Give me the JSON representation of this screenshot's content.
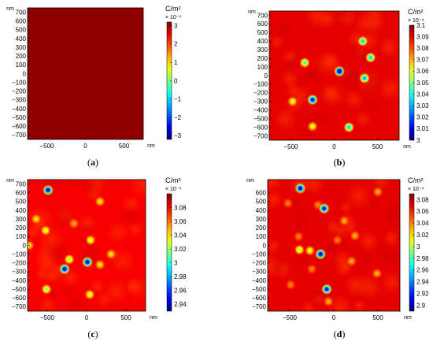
{
  "chart_data": [
    {
      "type": "heatmap",
      "panel_label": "a",
      "xlabel_unit": "nm",
      "ylabel_unit": "nm",
      "xlim": [
        -750,
        750
      ],
      "ylim": [
        -750,
        750
      ],
      "x_ticks": [
        -500,
        0,
        500
      ],
      "y_ticks": [
        700,
        600,
        500,
        400,
        300,
        200,
        100,
        0,
        -100,
        -200,
        -300,
        -400,
        -500,
        -600,
        -700
      ],
      "colorbar": {
        "title": "C/m²",
        "multiplier": "× 10⁻⁴",
        "min": -3.2,
        "max": 3.2,
        "ticks": [
          3,
          2,
          1,
          0,
          -1,
          -2,
          -3
        ],
        "tick_labels": [
          "3",
          "2",
          "1",
          "0",
          "−1",
          "−2",
          "−3"
        ]
      },
      "background_value": 3.1,
      "defects": []
    },
    {
      "type": "heatmap",
      "panel_label": "b",
      "xlabel_unit": "nm",
      "ylabel_unit": "nm",
      "xlim": [
        -750,
        750
      ],
      "ylim": [
        -750,
        750
      ],
      "x_ticks": [
        -500,
        0,
        500
      ],
      "y_ticks": [
        700,
        600,
        500,
        400,
        300,
        200,
        100,
        0,
        -100,
        -200,
        -300,
        -400,
        -500,
        -600,
        -700
      ],
      "colorbar": {
        "title": "C/m²",
        "multiplier": "× 10⁻⁴",
        "min": 3.0,
        "max": 3.1,
        "ticks": [
          3.1,
          3.09,
          3.08,
          3.07,
          3.06,
          3.05,
          3.04,
          3.03,
          3.02,
          3.01,
          3
        ],
        "tick_labels": [
          "3.1",
          "3.09",
          "3.08",
          "3.07",
          "3.06",
          "3.05",
          "3.04",
          "3.03",
          "3.02",
          "3.01",
          "3"
        ]
      },
      "background_value": 3.09,
      "defects": [
        {
          "x": 330,
          "y": 400,
          "value": 3.035
        },
        {
          "x": -340,
          "y": 150,
          "value": 3.045
        },
        {
          "x": 420,
          "y": 210,
          "value": 3.035
        },
        {
          "x": 60,
          "y": 50,
          "value": 3.0
        },
        {
          "x": 350,
          "y": -30,
          "value": 3.03
        },
        {
          "x": -480,
          "y": -300,
          "value": 3.06
        },
        {
          "x": -250,
          "y": -280,
          "value": 3.01
        },
        {
          "x": -250,
          "y": -590,
          "value": 3.06
        },
        {
          "x": 170,
          "y": -600,
          "value": 3.035
        }
      ]
    },
    {
      "type": "heatmap",
      "panel_label": "c",
      "xlabel_unit": "nm",
      "ylabel_unit": "nm",
      "xlim": [
        -750,
        750
      ],
      "ylim": [
        -750,
        750
      ],
      "x_ticks": [
        -500,
        0,
        500
      ],
      "y_ticks": [
        700,
        600,
        500,
        400,
        300,
        200,
        100,
        0,
        -100,
        -200,
        -300,
        -400,
        -500,
        -600,
        -700
      ],
      "colorbar": {
        "title": "C/m²",
        "multiplier": "× 10⁻⁴",
        "min": 2.93,
        "max": 3.1,
        "ticks": [
          3.08,
          3.06,
          3.04,
          3.02,
          3,
          2.98,
          2.96,
          2.94
        ],
        "tick_labels": [
          "3.08",
          "3.06",
          "3.04",
          "3.02",
          "3",
          "2.98",
          "2.96",
          "2.94"
        ]
      },
      "background_value": 3.08,
      "defects": [
        {
          "x": -490,
          "y": 630,
          "value": 2.94
        },
        {
          "x": 170,
          "y": 500,
          "value": 3.04
        },
        {
          "x": -640,
          "y": 300,
          "value": 3.04
        },
        {
          "x": -520,
          "y": 170,
          "value": 3.03
        },
        {
          "x": -160,
          "y": 250,
          "value": 3.05
        },
        {
          "x": 50,
          "y": 60,
          "value": 3.03
        },
        {
          "x": -730,
          "y": 0,
          "value": 3.04
        },
        {
          "x": -220,
          "y": -160,
          "value": 3.02
        },
        {
          "x": -280,
          "y": -270,
          "value": 2.94
        },
        {
          "x": 10,
          "y": -190,
          "value": 2.94
        },
        {
          "x": 170,
          "y": -220,
          "value": 3.04
        },
        {
          "x": 310,
          "y": -100,
          "value": 3.04
        },
        {
          "x": -510,
          "y": -500,
          "value": 3.02
        },
        {
          "x": 40,
          "y": -560,
          "value": 3.03
        }
      ]
    },
    {
      "type": "heatmap",
      "panel_label": "d",
      "xlabel_unit": "nm",
      "ylabel_unit": "nm",
      "xlim": [
        -750,
        750
      ],
      "ylim": [
        -750,
        750
      ],
      "x_ticks": [
        -500,
        0,
        500
      ],
      "y_ticks": [
        600,
        500,
        400,
        300,
        200,
        100,
        0,
        -100,
        -200,
        -300,
        -400,
        -500,
        -600,
        -700
      ],
      "colorbar": {
        "title": "C/m²",
        "multiplier": "× 10⁻⁴",
        "min": 2.89,
        "max": 3.09,
        "ticks": [
          3.08,
          3.06,
          3.04,
          3.02,
          3,
          2.98,
          2.96,
          2.94,
          2.92,
          2.9
        ],
        "tick_labels": [
          "3.08",
          "3.06",
          "3.04",
          "3.02",
          "3",
          "2.98",
          "2.96",
          "2.94",
          "2.92",
          "2.9"
        ]
      },
      "background_value": 3.07,
      "defects": [
        {
          "x": -380,
          "y": 650,
          "value": 2.9
        },
        {
          "x": 500,
          "y": 610,
          "value": 3.03
        },
        {
          "x": -520,
          "y": 480,
          "value": 3.04
        },
        {
          "x": -180,
          "y": 460,
          "value": 3.04
        },
        {
          "x": -110,
          "y": 420,
          "value": 2.91
        },
        {
          "x": 120,
          "y": 280,
          "value": 3.03
        },
        {
          "x": -400,
          "y": 100,
          "value": 3.04
        },
        {
          "x": 240,
          "y": 110,
          "value": 3.03
        },
        {
          "x": 40,
          "y": 60,
          "value": 3.04
        },
        {
          "x": -390,
          "y": -50,
          "value": 3.0
        },
        {
          "x": -270,
          "y": -60,
          "value": 3.01
        },
        {
          "x": -150,
          "y": -100,
          "value": 2.9
        },
        {
          "x": 200,
          "y": -180,
          "value": 3.03
        },
        {
          "x": -250,
          "y": -270,
          "value": 3.04
        },
        {
          "x": 490,
          "y": -320,
          "value": 3.03
        },
        {
          "x": -490,
          "y": -450,
          "value": 3.04
        },
        {
          "x": -80,
          "y": -500,
          "value": 2.91
        },
        {
          "x": -60,
          "y": -640,
          "value": 3.03
        }
      ]
    }
  ]
}
